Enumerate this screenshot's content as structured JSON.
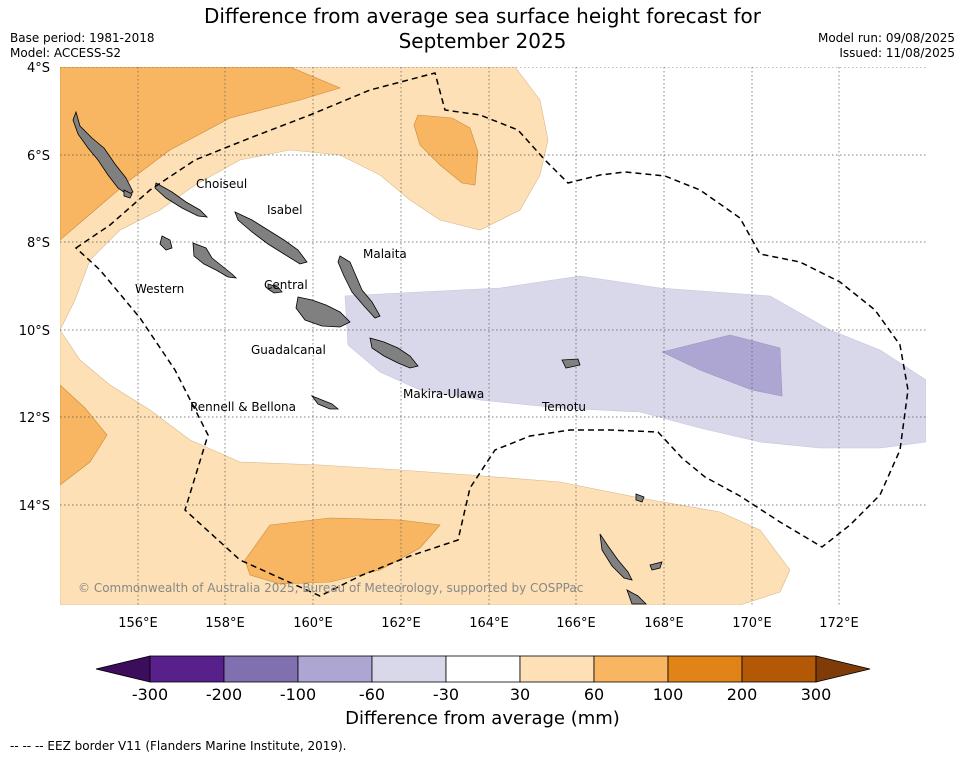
{
  "title_line1": "Difference from average sea surface height forecast for",
  "title_line2": "September 2025",
  "base_period": "Base period: 1981-2018",
  "model": "Model: ACCESS-S2",
  "model_run": "Model run: 09/08/2025",
  "issued": "Issued: 11/08/2025",
  "lat_labels": [
    "4°S",
    "6°S",
    "8°S",
    "10°S",
    "12°S",
    "14°S"
  ],
  "lon_labels": [
    "156°E",
    "158°E",
    "160°E",
    "162°E",
    "164°E",
    "166°E",
    "168°E",
    "170°E",
    "172°E"
  ],
  "island_labels": {
    "choiseul": "Choiseul",
    "isabel": "Isabel",
    "malaita": "Malaita",
    "western": "Western",
    "central": "Central",
    "guadalcanal": "Guadalcanal",
    "rennell": "Rennell & Bellona",
    "makira": "Makira-Ulawa",
    "temotu": "Temotu"
  },
  "copyright": "© Commonwealth of Australia 2025, Bureau of Meteorology, supported by COSPPac",
  "colorbar": {
    "ticks": [
      "-300",
      "-200",
      "-100",
      "-60",
      "-30",
      "30",
      "60",
      "100",
      "200",
      "300"
    ],
    "colors": [
      "#3c0d5c",
      "#58208a",
      "#8070b0",
      "#ada6d2",
      "#d8d8ea",
      "#ffffff",
      "#fde0b5",
      "#f9b662",
      "#e08418",
      "#b35806",
      "#7f3b08"
    ],
    "title": "Difference from average (mm)"
  },
  "eez_note": "-- -- -- EEZ border V11 (Flanders Marine Institute, 2019)."
}
